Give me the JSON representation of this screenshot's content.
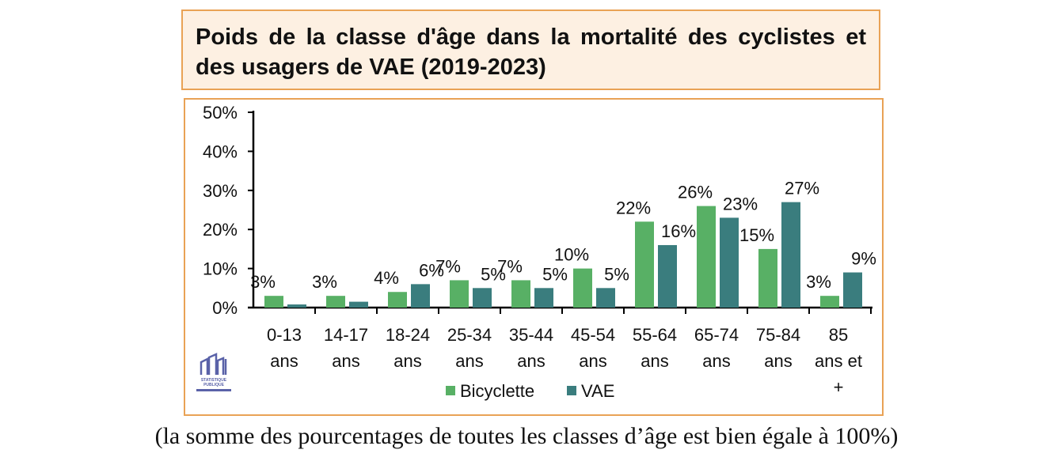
{
  "chart_data": {
    "type": "bar",
    "title": "Poids de la classe d'âge dans la mortalité des cyclistes et des usagers de VAE (2019-2023)",
    "categories": [
      [
        "0-13",
        "ans"
      ],
      [
        "14-17",
        "ans"
      ],
      [
        "18-24",
        "ans"
      ],
      [
        "25-34",
        "ans"
      ],
      [
        "35-44",
        "ans"
      ],
      [
        "45-54",
        "ans"
      ],
      [
        "55-64",
        "ans"
      ],
      [
        "65-74",
        "ans"
      ],
      [
        "75-84",
        "ans"
      ],
      [
        "85",
        "ans et",
        "+"
      ]
    ],
    "series": [
      {
        "name": "Bicyclette",
        "color": "#58b065",
        "values": [
          3,
          3,
          4,
          7,
          7,
          10,
          22,
          26,
          15,
          3
        ],
        "labels": [
          "3%",
          "3%",
          "4%",
          "7%",
          "7%",
          "10%",
          "22%",
          "26%",
          "15%",
          "3%"
        ]
      },
      {
        "name": "VAE",
        "color": "#3a7d7e",
        "values": [
          0.8,
          1.5,
          6,
          5,
          5,
          5,
          16,
          23,
          27,
          9
        ],
        "labels": [
          "",
          "",
          "6%",
          "5%",
          "5%",
          "5%",
          "16%",
          "23%",
          "27%",
          "9%"
        ]
      }
    ],
    "ylim": [
      0,
      50
    ],
    "yticks": [
      "0%",
      "10%",
      "20%",
      "30%",
      "40%",
      "50%"
    ],
    "legend": "bottom"
  },
  "logo_text": [
    "STATISTIQUE",
    "PUBLIQUE"
  ],
  "caption": "(la somme des pourcentages de toutes les classes d’âge est bien égale à 100%)"
}
